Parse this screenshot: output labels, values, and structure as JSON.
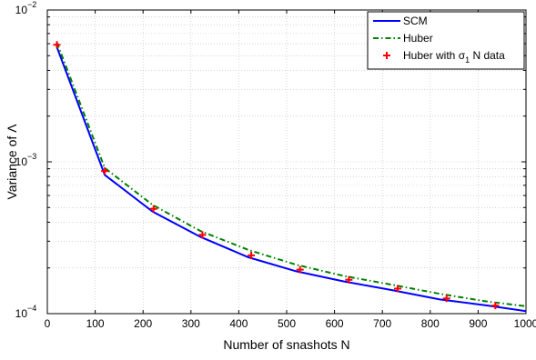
{
  "chart_data": {
    "type": "line",
    "xlabel": "Number of snashots N",
    "ylabel": "Variance of Λ",
    "xlim": [
      0,
      1000
    ],
    "ylim": [
      0.0001,
      0.01
    ],
    "yscale": "log",
    "grid": true,
    "legend_position": "top-right",
    "x_ticks": [
      0,
      100,
      200,
      300,
      400,
      500,
      600,
      700,
      800,
      900,
      1000
    ],
    "y_ticks": [
      {
        "value": 0.0001,
        "base": "10",
        "exp": "−4"
      },
      {
        "value": 0.001,
        "base": "10",
        "exp": "−3"
      },
      {
        "value": 0.01,
        "base": "10",
        "exp": "−2"
      }
    ],
    "series": [
      {
        "name": "SCM",
        "style": "solid",
        "color": "#0000ff",
        "x": [
          20,
          120,
          220,
          320,
          420,
          520,
          620,
          720,
          820,
          920,
          1000
        ],
        "y": [
          0.0057,
          0.00082,
          0.00047,
          0.00032,
          0.000235,
          0.00019,
          0.000163,
          0.000143,
          0.000124,
          0.000113,
          0.000104
        ]
      },
      {
        "name": "Huber",
        "style": "dashdot",
        "color": "#008000",
        "x": [
          20,
          120,
          220,
          320,
          420,
          520,
          620,
          720,
          820,
          920,
          1000
        ],
        "y": [
          0.0061,
          0.00091,
          0.00052,
          0.00035,
          0.000263,
          0.00021,
          0.000177,
          0.000155,
          0.000135,
          0.00012,
          0.000112
        ]
      },
      {
        "name_parts": {
          "before": "Huber with ",
          "symbol": "σ",
          "sub": "1",
          "after": " N data"
        },
        "style": "markers",
        "marker": "+",
        "color": "#ff0000",
        "x": [
          20,
          120,
          222,
          324,
          426,
          528,
          630,
          732,
          834,
          936
        ],
        "y": [
          0.0059,
          0.00087,
          0.00049,
          0.00033,
          0.000242,
          0.000195,
          0.000167,
          0.000146,
          0.000126,
          0.000113
        ]
      }
    ]
  }
}
